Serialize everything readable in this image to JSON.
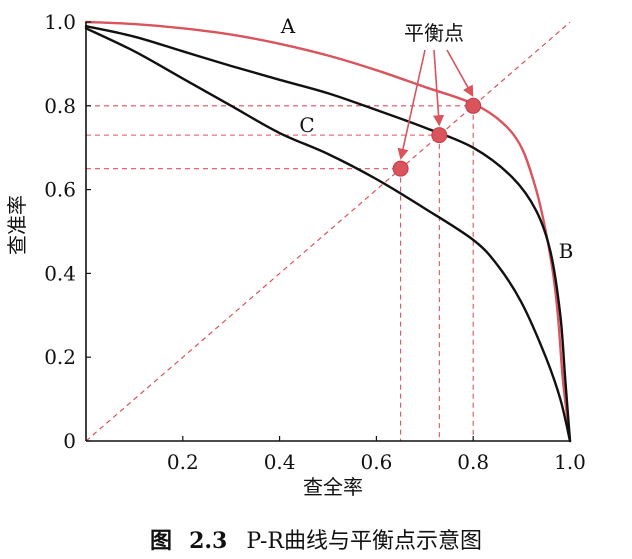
{
  "chart_data": {
    "type": "line",
    "xlabel": "查全率",
    "ylabel": "查准率",
    "xlim": [
      0,
      1
    ],
    "ylim": [
      0,
      1
    ],
    "x_ticks": [
      "0.2",
      "0.4",
      "0.6",
      "0.8",
      "1.0"
    ],
    "y_ticks": [
      "0",
      "0.2",
      "0.4",
      "0.6",
      "0.8",
      "1.0"
    ],
    "grid": false,
    "series": [
      {
        "name": "A",
        "color": "#d9545c",
        "points": [
          [
            0,
            1.0
          ],
          [
            0.1,
            0.995
          ],
          [
            0.2,
            0.985
          ],
          [
            0.3,
            0.97
          ],
          [
            0.4,
            0.948
          ],
          [
            0.5,
            0.92
          ],
          [
            0.6,
            0.885
          ],
          [
            0.7,
            0.845
          ],
          [
            0.8,
            0.805
          ],
          [
            0.86,
            0.76
          ],
          [
            0.9,
            0.7
          ],
          [
            0.93,
            0.6
          ],
          [
            0.95,
            0.5
          ],
          [
            0.965,
            0.4
          ],
          [
            0.975,
            0.3
          ],
          [
            0.985,
            0.15
          ],
          [
            0.995,
            0.05
          ],
          [
            1.0,
            0
          ]
        ]
      },
      {
        "name": "B",
        "color": "#111111",
        "points": [
          [
            0,
            0.99
          ],
          [
            0.1,
            0.965
          ],
          [
            0.2,
            0.93
          ],
          [
            0.3,
            0.895
          ],
          [
            0.4,
            0.862
          ],
          [
            0.5,
            0.83
          ],
          [
            0.6,
            0.79
          ],
          [
            0.7,
            0.748
          ],
          [
            0.8,
            0.7
          ],
          [
            0.88,
            0.63
          ],
          [
            0.93,
            0.55
          ],
          [
            0.96,
            0.45
          ],
          [
            0.98,
            0.3
          ],
          [
            0.99,
            0.15
          ],
          [
            1.0,
            0
          ]
        ]
      },
      {
        "name": "C",
        "color": "#111111",
        "points": [
          [
            0,
            0.985
          ],
          [
            0.1,
            0.93
          ],
          [
            0.2,
            0.865
          ],
          [
            0.3,
            0.8
          ],
          [
            0.4,
            0.735
          ],
          [
            0.5,
            0.685
          ],
          [
            0.6,
            0.625
          ],
          [
            0.7,
            0.555
          ],
          [
            0.8,
            0.48
          ],
          [
            0.85,
            0.42
          ],
          [
            0.9,
            0.33
          ],
          [
            0.95,
            0.2
          ],
          [
            0.98,
            0.1
          ],
          [
            1.0,
            0
          ]
        ]
      }
    ],
    "break_even_points": [
      {
        "x": 0.65,
        "y": 0.65
      },
      {
        "x": 0.73,
        "y": 0.73
      },
      {
        "x": 0.8,
        "y": 0.8
      }
    ],
    "break_even_label": "平衡点",
    "annotation_color": "#d9545c"
  },
  "caption": {
    "prefix": "图",
    "number": "2.3",
    "text": "P-R曲线与平衡点示意图"
  }
}
